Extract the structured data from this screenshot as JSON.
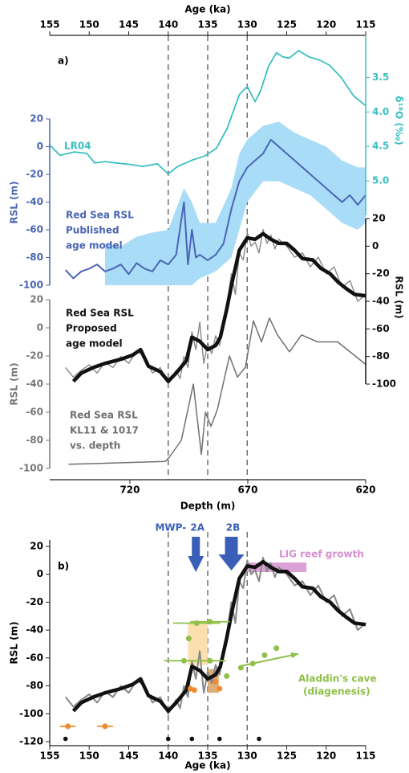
{
  "chart_data": [
    {
      "type": "line",
      "label": "a)",
      "x_axes": [
        {
          "label": "Age (ka)",
          "xlim": [
            155,
            115
          ],
          "xticks": [
            155,
            150,
            145,
            140,
            135,
            130,
            125,
            120,
            115
          ]
        },
        {
          "label": "Depth (m)",
          "xlim": [
            754,
            620
          ],
          "xticks": [
            720,
            670,
            620
          ]
        }
      ],
      "y_axes": [
        {
          "label": "δ¹⁸O (‰)",
          "color": "#3bbfc0",
          "ylim": [
            5.5,
            2.9
          ],
          "yticks": [
            3.5,
            {
              "value": 4,
              "label": "4.0"
            },
            4.5,
            {
              "value": 5,
              "label": "5.0"
            }
          ]
        },
        {
          "label": "RSL (m)",
          "color": "#4a64b4",
          "ylim": [
            -100,
            20
          ],
          "yticks": [
            20,
            0,
            -20,
            -40,
            -60,
            -80,
            -100
          ]
        },
        {
          "label": "RSL (m)",
          "color": "#111111",
          "ylim": [
            -100,
            20
          ],
          "yticks": [
            20,
            0,
            -20,
            -40,
            -60,
            -80,
            -100
          ]
        },
        {
          "label": "RSL (m)",
          "color": "#777777",
          "ylim": [
            -100,
            20
          ],
          "yticks": [
            20,
            0,
            -20,
            -40,
            -60,
            -80,
            -100
          ]
        }
      ],
      "vlines": [
        140,
        135,
        130
      ],
      "series": [
        {
          "name": "LR04",
          "color": "#3bbfc0",
          "x_axis": 0,
          "y_axis": 0,
          "x": [
            155,
            153.7,
            151.9,
            150.3,
            149.3,
            148,
            146.6,
            145,
            143.2,
            141.4,
            140,
            138.8,
            137,
            135.4,
            133.9,
            132.5,
            131,
            130,
            129,
            128.3,
            127.3,
            126.3,
            125.5,
            124.7,
            123.5,
            122.2,
            120.8,
            119.6,
            118.1,
            116.5,
            115
          ],
          "values": [
            4.48,
            4.63,
            4.58,
            4.6,
            4.74,
            4.72,
            4.74,
            4.76,
            4.79,
            4.75,
            4.9,
            4.79,
            4.7,
            4.64,
            4.53,
            4.23,
            3.75,
            3.63,
            3.85,
            3.69,
            3.34,
            3.14,
            3.2,
            3.22,
            3.11,
            3.2,
            3.25,
            3.32,
            3.5,
            3.77,
            3.91
          ]
        },
        {
          "color": "#a9dcf6",
          "x_axis": 0,
          "y_axis": 1,
          "x": [
            148,
            146,
            144,
            142,
            140,
            138,
            137,
            136,
            134,
            132,
            131,
            130,
            128,
            126,
            124,
            122,
            120,
            118,
            116,
            115
          ],
          "upper": [
            -70,
            -72,
            -65,
            -62,
            -60,
            -30,
            -40,
            -55,
            -55,
            -30,
            -5,
            5,
            15,
            18,
            10,
            5,
            0,
            -10,
            -15,
            -15
          ],
          "lower": [
            -100,
            -100,
            -100,
            -100,
            -100,
            -100,
            -100,
            -95,
            -90,
            -80,
            -60,
            -40,
            -25,
            -25,
            -30,
            -35,
            -45,
            -55,
            -60,
            -55
          ]
        },
        {
          "name": [
            "Red Sea RSL",
            "Published",
            "age model"
          ],
          "color": "#4a64b4",
          "x_axis": 0,
          "y_axis": 1,
          "x": [
            153,
            152,
            151,
            150,
            149,
            148,
            147,
            146,
            145,
            144,
            143,
            142,
            141,
            140,
            139,
            138,
            137.5,
            137,
            136.5,
            136,
            135,
            134,
            133,
            132,
            131,
            130,
            129,
            128,
            127,
            126,
            125,
            124,
            123,
            122,
            121,
            120,
            119,
            118,
            117,
            116,
            115
          ],
          "values": [
            -89,
            -95,
            -90,
            -88,
            -85,
            -90,
            -88,
            -85,
            -92,
            -84,
            -88,
            -90,
            -82,
            -85,
            -78,
            -40,
            -85,
            -60,
            -80,
            -78,
            -82,
            -78,
            -70,
            -45,
            -25,
            -15,
            -10,
            -5,
            5,
            0,
            -5,
            -10,
            -15,
            -20,
            -25,
            -30,
            -35,
            -40,
            -35,
            -42,
            -35
          ]
        },
        {
          "color": "#888888",
          "x_axis": 0,
          "y_axis": 2,
          "x": [
            153,
            152,
            151,
            150,
            149,
            148,
            147,
            146,
            145,
            144,
            143,
            142,
            141,
            140,
            139,
            138.5,
            138,
            137.5,
            137,
            136.5,
            136,
            135.5,
            135,
            134.5,
            134,
            133.5,
            133,
            132.5,
            132,
            131.5,
            131,
            130.5,
            130,
            129.5,
            129,
            128.5,
            128,
            127.5,
            127,
            126.5,
            126,
            125,
            124,
            123,
            122,
            121,
            120,
            119,
            118,
            117,
            116,
            115
          ],
          "values": [
            -88,
            -95,
            -90,
            -86,
            -92,
            -84,
            -88,
            -80,
            -85,
            -76,
            -80,
            -92,
            -88,
            -100,
            -90,
            -96,
            -80,
            -88,
            -62,
            -75,
            -55,
            -85,
            -70,
            -78,
            -65,
            -72,
            -55,
            -40,
            -20,
            -35,
            -5,
            -10,
            10,
            0,
            3,
            -5,
            12,
            2,
            8,
            -2,
            5,
            0,
            -8,
            -5,
            -15,
            -8,
            -20,
            -15,
            -30,
            -25,
            -40,
            -35
          ]
        },
        {
          "name": [
            "Red Sea RSL",
            "Proposed",
            "age model"
          ],
          "color": "#111111",
          "x_axis": 0,
          "y_axis": 2,
          "x": [
            152,
            151,
            149.5,
            148,
            146,
            144.5,
            143.5,
            142.5,
            141,
            140,
            139,
            137.7,
            137,
            136,
            135,
            134,
            133.4,
            132.6,
            131.9,
            131,
            130,
            129,
            128,
            127,
            126,
            125,
            124,
            123,
            121.7,
            120.7,
            119.5,
            118.5,
            117.4,
            116.4,
            115
          ],
          "values": [
            -98,
            -92,
            -88,
            -85,
            -82,
            -79,
            -75,
            -87,
            -91,
            -98,
            -92,
            -83,
            -66,
            -69,
            -75,
            -72,
            -66,
            -46,
            -26,
            -3,
            6,
            5,
            9,
            5,
            2,
            2,
            -3,
            -9,
            -10,
            -16,
            -20,
            -26,
            -31,
            -35,
            -36
          ]
        },
        {
          "name": [
            "Red Sea RSL",
            "KL11 & 1017",
            "vs. depth"
          ],
          "color": "#707070",
          "x_axis": 1,
          "y_axis": 3,
          "x": [
            746,
            705,
            703.3,
            698.2,
            693.1,
            691.4,
            689.7,
            688,
            685.6,
            682.9,
            677.8,
            674.4,
            671,
            667.6,
            664.2,
            660.8,
            657.4,
            652.3,
            647.2,
            640.4,
            631.9,
            620
          ],
          "values": [
            -97,
            -95,
            -92,
            -80,
            -40,
            -65,
            -90,
            -60,
            -70,
            -58,
            -20,
            -35,
            -28,
            5,
            -10,
            7,
            -5,
            -17,
            -5,
            -10,
            -10,
            -26
          ]
        }
      ]
    },
    {
      "type": "line",
      "label": "b)",
      "xlabel": "Age (ka)",
      "xlim": [
        155,
        115
      ],
      "xticks": [
        155,
        150,
        145,
        140,
        135,
        130,
        125,
        120,
        115
      ],
      "ylabel": "RSL (m)",
      "ylim": [
        -120,
        20
      ],
      "yticks": [
        20,
        0,
        -20,
        -40,
        -60,
        -80,
        -100,
        -120
      ],
      "vlines": [
        140,
        135,
        130
      ],
      "boxes": [
        {
          "color": "#fcd9a0",
          "x": [
            137.5,
            135
          ],
          "y": [
            -65,
            -35
          ]
        },
        {
          "color": "#d6a060",
          "x": [
            135,
            133.6
          ],
          "y": [
            -85,
            -68
          ]
        }
      ],
      "series": [
        {
          "color": "#888888",
          "x": [
            153,
            152,
            151,
            150,
            149,
            148,
            147,
            146,
            145,
            144,
            143,
            142,
            141,
            140,
            139,
            138.5,
            138,
            137.5,
            137,
            136.5,
            136,
            135.5,
            135,
            134.5,
            134,
            133.5,
            133,
            132.5,
            132,
            131.5,
            131,
            130.5,
            130,
            129.5,
            129,
            128.5,
            128,
            127.5,
            127,
            126.5,
            126,
            125,
            124,
            123,
            122,
            121,
            120,
            119,
            118,
            117,
            116,
            115
          ],
          "values": [
            -88,
            -95,
            -90,
            -86,
            -92,
            -84,
            -88,
            -80,
            -85,
            -76,
            -80,
            -92,
            -88,
            -100,
            -90,
            -96,
            -80,
            -88,
            -62,
            -75,
            -55,
            -85,
            -70,
            -78,
            -65,
            -72,
            -55,
            -40,
            -20,
            -35,
            -5,
            -10,
            10,
            0,
            3,
            -5,
            12,
            2,
            8,
            -2,
            5,
            0,
            -8,
            -5,
            -15,
            -8,
            -20,
            -15,
            -30,
            -25,
            -40,
            -35
          ]
        },
        {
          "color": "#111111",
          "x": [
            152,
            151,
            149.5,
            148,
            146,
            144.5,
            143.5,
            142.5,
            141,
            140,
            139,
            137.7,
            137,
            136,
            135,
            134,
            133.4,
            132.6,
            131.9,
            131,
            130,
            129,
            128,
            127,
            126,
            125,
            124,
            123,
            121.7,
            120.7,
            119.5,
            118.5,
            117.4,
            116.4,
            115
          ],
          "values": [
            -98,
            -92,
            -88,
            -85,
            -82,
            -79,
            -75,
            -87,
            -91,
            -98,
            -92,
            -83,
            -66,
            -69,
            -75,
            -72,
            -66,
            -46,
            -26,
            -3,
            6,
            5,
            9,
            5,
            2,
            2,
            -3,
            -9,
            -10,
            -16,
            -20,
            -26,
            -31,
            -35,
            -36
          ]
        }
      ],
      "events": {
        "prefix": "MWP-",
        "color": "#3a5fb8",
        "items": [
          {
            "label": "2A",
            "x": 136.5
          },
          {
            "label": "2B",
            "x": 132
          }
        ]
      },
      "reef": {
        "label": "LIG reef growth",
        "color": "#d690d0",
        "x": [
          130,
          122.5
        ],
        "y": 5
      },
      "cave": {
        "label": [
          "Aladdin's cave",
          "(diagenesis)"
        ],
        "color": "#8fc04a",
        "x": [
          136.4,
          134.7,
          137.4,
          138,
          134.7,
          132.6,
          130.8,
          129.3,
          127.8,
          126.3
        ],
        "values": [
          -35,
          -34,
          -46,
          -62,
          -62,
          -73,
          -67,
          -64,
          -58,
          -53
        ],
        "xerr": [
          3,
          2.5,
          null,
          2.5,
          2,
          null,
          null,
          null,
          null,
          null
        ],
        "arrow": {
          "x": [
            131,
            123.5
          ],
          "values": [
            -66,
            -57
          ]
        }
      },
      "orange": {
        "color": "#f08a30",
        "x": [
          152.7,
          148,
          137.2,
          136.7,
          134,
          133.5
        ],
        "values": [
          -109,
          -109,
          -82,
          -83,
          -77,
          -82
        ],
        "xerr": [
          1,
          1,
          null,
          null,
          null,
          null
        ]
      },
      "dates": {
        "color": "#111111",
        "x": [
          153,
          140,
          137,
          133.5,
          128.5
        ],
        "values": [
          -118,
          -118,
          -118,
          -118,
          -118
        ]
      }
    }
  ]
}
